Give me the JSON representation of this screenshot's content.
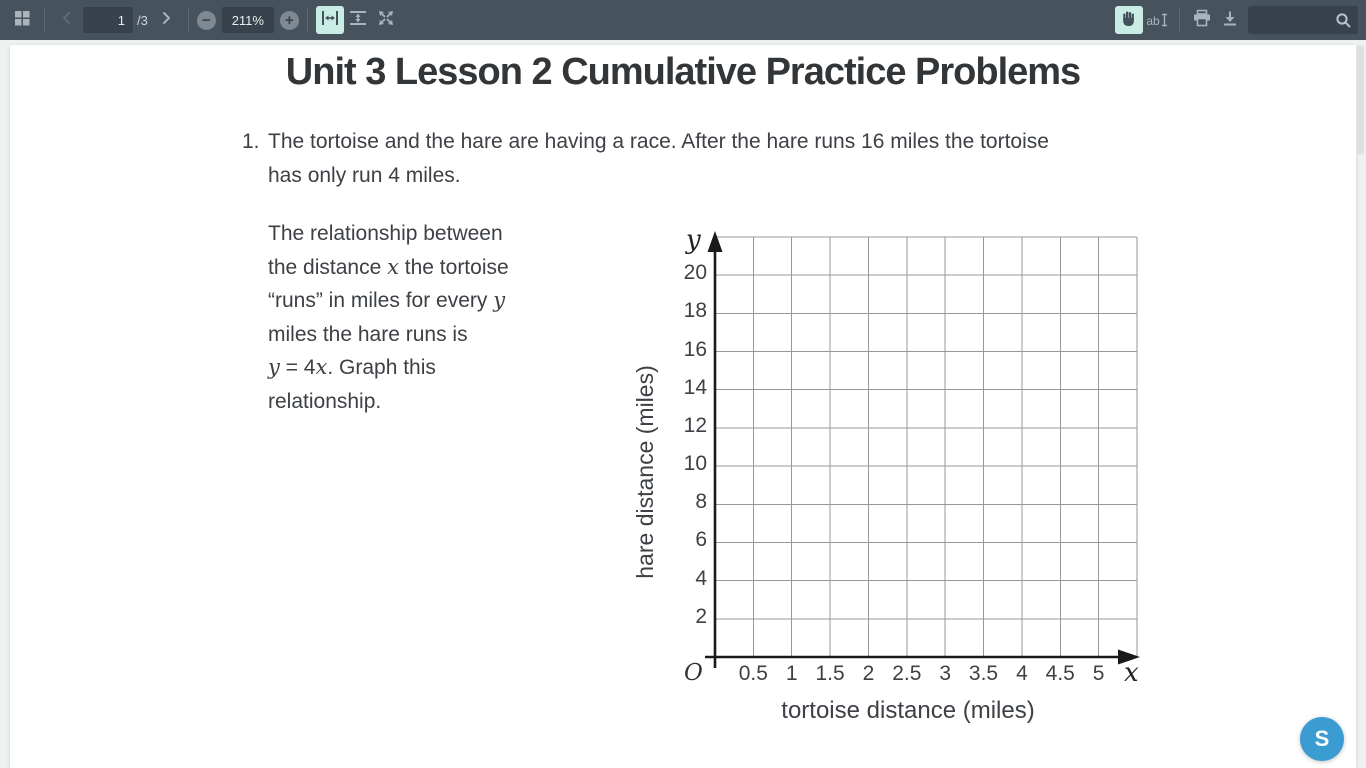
{
  "colors": {
    "toolbar_bg": "#46525c",
    "toolbar_field_bg": "#37424c",
    "toolbar_icon": "#a9b4bc",
    "active_tool_bg": "#c9ece4",
    "document_text": "#3d4145",
    "gridline": "#979797",
    "axis": "#1a1a1a",
    "fab_bg": "#3b9cd2"
  },
  "toolbar": {
    "page_current": "1",
    "page_total": "/3",
    "zoom_level": "211%",
    "search_value": ""
  },
  "page": {
    "title": "Unit 3 Lesson 2 Cumulative Practice Problems",
    "problem": {
      "number": "1.",
      "lines": [
        "The tortoise and the hare are having a race. After the hare runs 16 miles the tortoise",
        "has only run 4 miles."
      ]
    },
    "description_lines": [
      [
        {
          "t": "The relationship between"
        }
      ],
      [
        {
          "t": "the distance "
        },
        {
          "t": "x",
          "i": true
        },
        {
          "t": " the tortoise"
        }
      ],
      [
        {
          "t": "“runs” in miles for every "
        },
        {
          "t": "y",
          "i": true
        }
      ],
      [
        {
          "t": "miles the hare runs is"
        }
      ],
      [
        {
          "t": "y",
          "i": true
        },
        {
          "t": " = 4"
        },
        {
          "t": "x",
          "i": true
        },
        {
          "t": ". Graph this"
        }
      ],
      [
        {
          "t": "relationship."
        }
      ]
    ]
  },
  "chart_data": {
    "type": "scatter",
    "title": "",
    "xlabel": "tortoise distance (miles)",
    "ylabel": "hare distance (miles)",
    "x_axis_var": "x",
    "y_axis_var": "y",
    "origin_label": "O",
    "x_ticks": [
      "0.5",
      "1",
      "1.5",
      "2",
      "2.5",
      "3",
      "3.5",
      "4",
      "4.5",
      "5"
    ],
    "y_ticks": [
      "2",
      "4",
      "6",
      "8",
      "10",
      "12",
      "14",
      "16",
      "18",
      "20"
    ],
    "xlim": [
      0,
      5.5
    ],
    "ylim": [
      0,
      22
    ],
    "grid_step_x": 0.5,
    "grid_step_y": 2,
    "grid": true,
    "legend": false,
    "series": []
  },
  "fab": {
    "label": "S"
  }
}
